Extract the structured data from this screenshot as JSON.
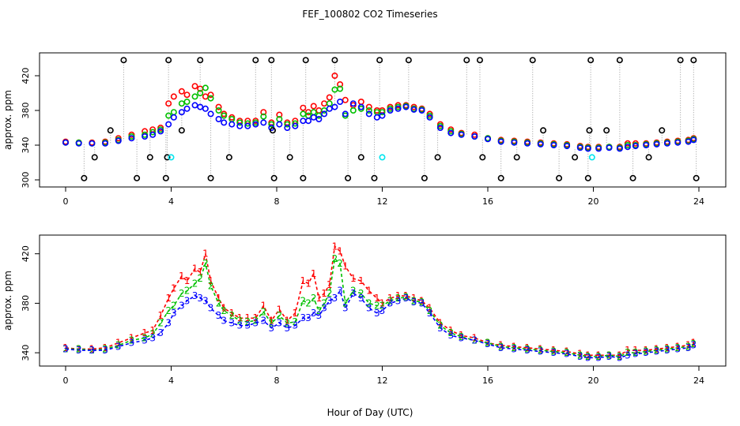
{
  "title": "FEF_100802  CO2 Timeseries",
  "colors": {
    "series1": "#ff0000",
    "series2": "#00c000",
    "series3": "#0000ff",
    "outlier": "#000000",
    "outlier_cyan": "#00e5ee",
    "vline": "#9a9a9a"
  },
  "chart_data": [
    {
      "type": "scatter",
      "xlabel": "",
      "ylabel": "approx. ppm",
      "xlim": [
        0,
        24
      ],
      "ylim": [
        300,
        440
      ],
      "xticks": [
        0,
        4,
        8,
        12,
        16,
        20,
        24
      ],
      "yticks": [
        300,
        340,
        380,
        420
      ],
      "grid": false,
      "series": [
        {
          "id": "1",
          "color": "#ff0000",
          "x": [
            0.0,
            0.5,
            1.0,
            1.5,
            2.0,
            2.5,
            3.0,
            3.3,
            3.6,
            3.9,
            4.1,
            4.4,
            4.6,
            4.9,
            5.1,
            5.3,
            5.5,
            5.8,
            6.0,
            6.3,
            6.6,
            6.9,
            7.2,
            7.5,
            7.8,
            8.1,
            8.4,
            8.7,
            9.0,
            9.2,
            9.4,
            9.6,
            9.8,
            10.0,
            10.2,
            10.4,
            10.6,
            10.9,
            11.2,
            11.5,
            11.8,
            12.0,
            12.3,
            12.6,
            12.9,
            13.2,
            13.5,
            13.8,
            14.2,
            14.6,
            15.0,
            15.5,
            16.0,
            16.5,
            17.0,
            17.5,
            18.0,
            18.5,
            19.0,
            19.5,
            19.8,
            20.2,
            20.6,
            21.0,
            21.3,
            21.6,
            22.0,
            22.4,
            22.8,
            23.2,
            23.6,
            23.8
          ],
          "y": [
            344,
            343,
            343,
            344,
            348,
            352,
            356,
            358,
            360,
            388,
            396,
            402,
            398,
            408,
            405,
            396,
            398,
            384,
            376,
            372,
            368,
            368,
            368,
            378,
            366,
            375,
            366,
            368,
            383,
            378,
            385,
            380,
            388,
            395,
            420,
            410,
            392,
            386,
            390,
            384,
            380,
            380,
            384,
            386,
            386,
            384,
            382,
            376,
            364,
            358,
            354,
            352,
            348,
            346,
            345,
            344,
            343,
            342,
            341,
            339,
            338,
            338,
            338,
            338,
            342,
            342,
            342,
            343,
            344,
            345,
            346,
            348
          ]
        },
        {
          "id": "2",
          "color": "#00c000",
          "x": [
            0.0,
            0.5,
            1.0,
            1.5,
            2.0,
            2.5,
            3.0,
            3.3,
            3.6,
            3.9,
            4.1,
            4.4,
            4.6,
            4.9,
            5.1,
            5.3,
            5.5,
            5.8,
            6.0,
            6.3,
            6.6,
            6.9,
            7.2,
            7.5,
            7.8,
            8.1,
            8.4,
            8.7,
            9.0,
            9.2,
            9.4,
            9.6,
            9.8,
            10.0,
            10.2,
            10.4,
            10.6,
            10.9,
            11.2,
            11.5,
            11.8,
            12.0,
            12.3,
            12.6,
            12.9,
            13.2,
            13.5,
            13.8,
            14.2,
            14.6,
            15.0,
            15.5,
            16.0,
            16.5,
            17.0,
            17.5,
            18.0,
            18.5,
            19.0,
            19.5,
            19.8,
            20.2,
            20.6,
            21.0,
            21.3,
            21.6,
            22.0,
            22.4,
            22.8,
            23.2,
            23.6,
            23.8
          ],
          "y": [
            343,
            343,
            342,
            343,
            346,
            350,
            352,
            355,
            358,
            374,
            378,
            388,
            390,
            396,
            400,
            406,
            394,
            380,
            374,
            370,
            366,
            365,
            366,
            373,
            364,
            370,
            364,
            365,
            376,
            374,
            378,
            374,
            380,
            388,
            404,
            405,
            374,
            380,
            382,
            380,
            378,
            378,
            382,
            384,
            385,
            382,
            381,
            374,
            362,
            356,
            353,
            350,
            348,
            345,
            344,
            343,
            342,
            341,
            340,
            338,
            337,
            337,
            338,
            337,
            340,
            340,
            341,
            342,
            343,
            344,
            345,
            347
          ]
        },
        {
          "id": "3",
          "color": "#0000ff",
          "x": [
            0.0,
            0.5,
            1.0,
            1.5,
            2.0,
            2.5,
            3.0,
            3.3,
            3.6,
            3.9,
            4.1,
            4.4,
            4.6,
            4.9,
            5.1,
            5.3,
            5.5,
            5.8,
            6.0,
            6.3,
            6.6,
            6.9,
            7.2,
            7.5,
            7.8,
            8.1,
            8.4,
            8.7,
            9.0,
            9.2,
            9.4,
            9.6,
            9.8,
            10.0,
            10.2,
            10.4,
            10.6,
            10.9,
            11.2,
            11.5,
            11.8,
            12.0,
            12.3,
            12.6,
            12.9,
            13.2,
            13.5,
            13.8,
            14.2,
            14.6,
            15.0,
            15.5,
            16.0,
            16.5,
            17.0,
            17.5,
            18.0,
            18.5,
            19.0,
            19.5,
            19.8,
            20.2,
            20.6,
            21.0,
            21.3,
            21.6,
            22.0,
            22.4,
            22.8,
            23.2,
            23.6,
            23.8
          ],
          "y": [
            343,
            342,
            342,
            342,
            345,
            348,
            350,
            352,
            356,
            364,
            372,
            378,
            382,
            386,
            384,
            382,
            376,
            370,
            366,
            364,
            362,
            362,
            364,
            366,
            360,
            364,
            360,
            362,
            368,
            368,
            372,
            370,
            376,
            382,
            384,
            390,
            376,
            388,
            384,
            376,
            372,
            374,
            380,
            382,
            384,
            381,
            380,
            372,
            360,
            354,
            352,
            350,
            347,
            344,
            343,
            342,
            341,
            340,
            339,
            337,
            336,
            336,
            337,
            336,
            338,
            339,
            340,
            341,
            342,
            343,
            344,
            346
          ]
        }
      ],
      "outliers": {
        "color": "#000000",
        "x": [
          0.7,
          1.1,
          1.7,
          2.2,
          2.7,
          3.2,
          3.8,
          3.85,
          3.9,
          4.4,
          5.1,
          5.5,
          6.2,
          7.2,
          7.8,
          7.85,
          7.9,
          8.5,
          9.0,
          9.1,
          10.2,
          10.7,
          11.2,
          11.7,
          11.9,
          13.0,
          13.6,
          14.1,
          15.2,
          15.7,
          15.8,
          16.5,
          17.1,
          17.7,
          18.1,
          18.7,
          19.3,
          19.8,
          19.85,
          19.9,
          20.5,
          21.0,
          21.5,
          22.1,
          22.6,
          23.3,
          23.8,
          23.9
        ],
        "y": [
          302,
          326,
          357,
          438,
          302,
          326,
          302,
          326,
          438,
          357,
          438,
          302,
          326,
          438,
          438,
          357,
          302,
          326,
          302,
          438,
          438,
          302,
          326,
          302,
          438,
          438,
          302,
          326,
          438,
          438,
          326,
          302,
          326,
          438,
          357,
          302,
          326,
          302,
          357,
          438,
          357,
          438,
          302,
          326,
          357,
          438,
          438,
          302
        ]
      },
      "outliers_cyan": {
        "color": "#00e5ee",
        "x": [
          4.0,
          12.0,
          19.95
        ],
        "y": [
          326,
          326,
          326
        ]
      }
    },
    {
      "type": "line",
      "xlabel": "Hour of Day (UTC)",
      "ylabel": "approx. ppm",
      "xlim": [
        0,
        24
      ],
      "ylim": [
        335,
        430
      ],
      "xticks": [
        0,
        4,
        8,
        12,
        16,
        20,
        24
      ],
      "yticks": [
        340,
        380,
        420
      ],
      "grid": false,
      "series": [
        {
          "id": "1",
          "color": "#ff0000",
          "x": [
            0.0,
            0.5,
            1.0,
            1.5,
            2.0,
            2.5,
            3.0,
            3.3,
            3.6,
            3.9,
            4.1,
            4.4,
            4.6,
            4.9,
            5.1,
            5.3,
            5.5,
            5.8,
            6.0,
            6.3,
            6.6,
            6.9,
            7.2,
            7.5,
            7.8,
            8.1,
            8.4,
            8.7,
            9.0,
            9.2,
            9.4,
            9.6,
            9.8,
            10.0,
            10.2,
            10.4,
            10.6,
            10.9,
            11.2,
            11.5,
            11.8,
            12.0,
            12.3,
            12.6,
            12.9,
            13.2,
            13.5,
            13.8,
            14.2,
            14.6,
            15.0,
            15.5,
            16.0,
            16.5,
            17.0,
            17.5,
            18.0,
            18.5,
            19.0,
            19.5,
            19.8,
            20.2,
            20.6,
            21.0,
            21.3,
            21.6,
            22.0,
            22.4,
            22.8,
            23.2,
            23.6,
            23.8
          ],
          "y": [
            344,
            343,
            343,
            344,
            348,
            352,
            356,
            358,
            370,
            384,
            392,
            402,
            398,
            408,
            405,
            420,
            398,
            384,
            376,
            372,
            368,
            368,
            368,
            378,
            366,
            375,
            366,
            372,
            398,
            396,
            404,
            384,
            388,
            395,
            426,
            422,
            410,
            400,
            398,
            390,
            384,
            380,
            384,
            386,
            386,
            384,
            382,
            376,
            364,
            358,
            354,
            352,
            348,
            346,
            345,
            344,
            343,
            342,
            341,
            339,
            338,
            338,
            338,
            338,
            342,
            342,
            342,
            343,
            344,
            345,
            346,
            348
          ]
        },
        {
          "id": "2",
          "color": "#00c000",
          "x": [
            0.0,
            0.5,
            1.0,
            1.5,
            2.0,
            2.5,
            3.0,
            3.3,
            3.6,
            3.9,
            4.1,
            4.4,
            4.6,
            4.9,
            5.1,
            5.3,
            5.5,
            5.8,
            6.0,
            6.3,
            6.6,
            6.9,
            7.2,
            7.5,
            7.8,
            8.1,
            8.4,
            8.7,
            9.0,
            9.2,
            9.4,
            9.6,
            9.8,
            10.0,
            10.2,
            10.4,
            10.6,
            10.9,
            11.2,
            11.5,
            11.8,
            12.0,
            12.3,
            12.6,
            12.9,
            13.2,
            13.5,
            13.8,
            14.2,
            14.6,
            15.0,
            15.5,
            16.0,
            16.5,
            17.0,
            17.5,
            18.0,
            18.5,
            19.0,
            19.5,
            19.8,
            20.2,
            20.6,
            21.0,
            21.3,
            21.6,
            22.0,
            22.4,
            22.8,
            23.2,
            23.6,
            23.8
          ],
          "y": [
            343,
            343,
            342,
            343,
            346,
            350,
            352,
            355,
            364,
            374,
            378,
            388,
            390,
            396,
            400,
            412,
            394,
            380,
            374,
            370,
            366,
            365,
            366,
            373,
            364,
            370,
            364,
            365,
            382,
            380,
            384,
            374,
            380,
            388,
            416,
            412,
            380,
            390,
            388,
            380,
            378,
            378,
            382,
            384,
            385,
            382,
            381,
            374,
            362,
            356,
            353,
            350,
            348,
            345,
            344,
            343,
            342,
            341,
            340,
            338,
            337,
            337,
            338,
            337,
            340,
            340,
            341,
            342,
            343,
            344,
            345,
            347
          ]
        },
        {
          "id": "3",
          "color": "#0000ff",
          "x": [
            0.0,
            0.5,
            1.0,
            1.5,
            2.0,
            2.5,
            3.0,
            3.3,
            3.6,
            3.9,
            4.1,
            4.4,
            4.6,
            4.9,
            5.1,
            5.3,
            5.5,
            5.8,
            6.0,
            6.3,
            6.6,
            6.9,
            7.2,
            7.5,
            7.8,
            8.1,
            8.4,
            8.7,
            9.0,
            9.2,
            9.4,
            9.6,
            9.8,
            10.0,
            10.2,
            10.4,
            10.6,
            10.9,
            11.2,
            11.5,
            11.8,
            12.0,
            12.3,
            12.6,
            12.9,
            13.2,
            13.5,
            13.8,
            14.2,
            14.6,
            15.0,
            15.5,
            16.0,
            16.5,
            17.0,
            17.5,
            18.0,
            18.5,
            19.0,
            19.5,
            19.8,
            20.2,
            20.6,
            21.0,
            21.3,
            21.6,
            22.0,
            22.4,
            22.8,
            23.2,
            23.6,
            23.8
          ],
          "y": [
            343,
            342,
            342,
            342,
            345,
            348,
            350,
            352,
            356,
            364,
            372,
            378,
            382,
            386,
            384,
            382,
            376,
            370,
            366,
            364,
            362,
            362,
            364,
            366,
            360,
            364,
            360,
            362,
            368,
            368,
            372,
            370,
            376,
            382,
            384,
            390,
            376,
            388,
            384,
            376,
            372,
            374,
            380,
            382,
            384,
            381,
            380,
            372,
            360,
            354,
            352,
            350,
            347,
            344,
            343,
            342,
            341,
            340,
            339,
            337,
            336,
            336,
            337,
            336,
            338,
            339,
            340,
            341,
            342,
            343,
            344,
            346
          ]
        }
      ]
    }
  ]
}
